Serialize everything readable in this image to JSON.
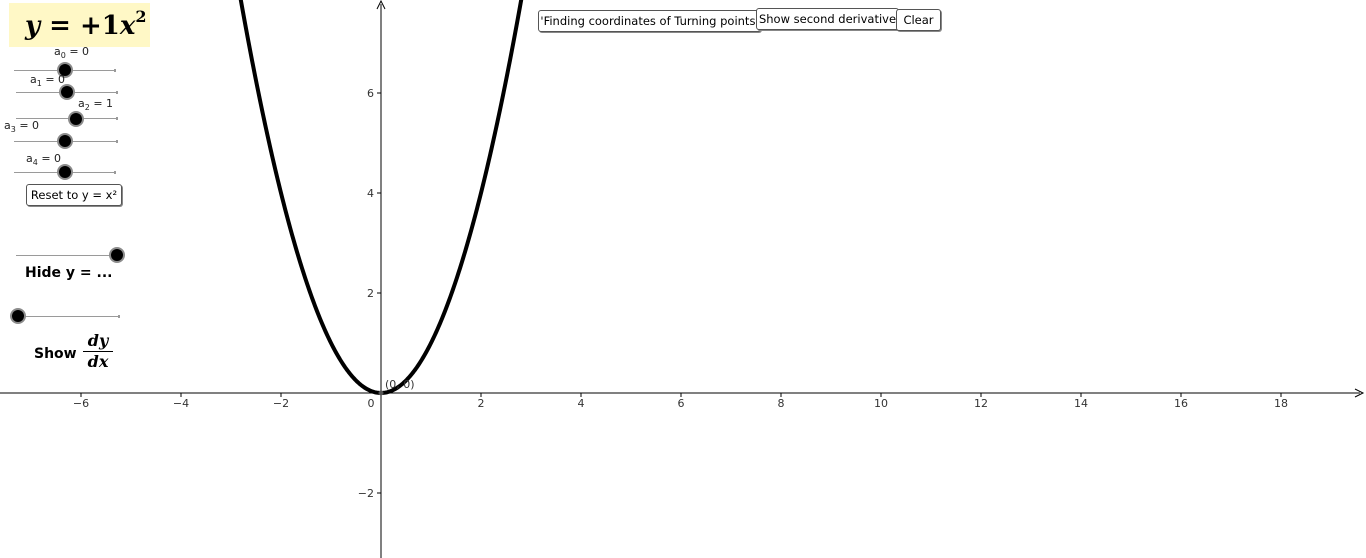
{
  "equation": {
    "lhs": "y",
    "eq": " = +1",
    "var": "x",
    "exp": "2"
  },
  "coefficients": [
    {
      "sym": "a",
      "sub": "0",
      "value_text": "= 0",
      "value": 0
    },
    {
      "sym": "a",
      "sub": "1",
      "value_text": "= 0",
      "value": 0
    },
    {
      "sym": "a",
      "sub": "2",
      "value_text": "= 1",
      "value": 1
    },
    {
      "sym": "a",
      "sub": "3",
      "value_text": "= 0",
      "value": 0
    },
    {
      "sym": "a",
      "sub": "4",
      "value_text": "= 0",
      "value": 0
    }
  ],
  "buttons": {
    "reset": "Reset to y = x²",
    "turning_points": "'Finding coordinates of Turning points'",
    "second_derivative": "Show second derivative",
    "clear": "Clear"
  },
  "toggles": {
    "hide_y_label": "Hide y = ...",
    "hide_y_value": 1,
    "show_label": "Show",
    "show_value": 0,
    "deriv_num": "dy",
    "deriv_den": "dx"
  },
  "graph": {
    "x_ticks": [
      "−6",
      "−4",
      "−2",
      "0",
      "2",
      "4",
      "6",
      "8",
      "10",
      "12",
      "14",
      "16",
      "18"
    ],
    "y_ticks": [
      "6",
      "4",
      "2",
      "−2"
    ],
    "point_label": "(0, 0)",
    "curve_color": "#000000",
    "x_range": [
      -7.6,
      19.6
    ],
    "y_range": [
      -3.2,
      7.9
    ]
  }
}
